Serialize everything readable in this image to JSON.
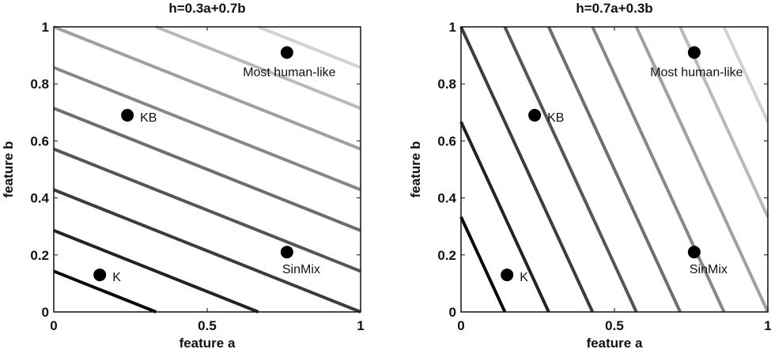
{
  "chart_data": [
    {
      "type": "line",
      "title": "h=0.3a+0.7b",
      "xlabel": "feature a",
      "ylabel": "feature b",
      "xlim": [
        0,
        1
      ],
      "ylim": [
        0,
        1
      ],
      "xticks": [
        "0",
        "0.5",
        "1"
      ],
      "xtick_values": [
        0,
        0.5,
        1
      ],
      "yticks": [
        "0",
        "0.2",
        "0.4",
        "0.6",
        "0.8",
        "1"
      ],
      "ytick_values": [
        0,
        0.2,
        0.4,
        0.6,
        0.8,
        1
      ],
      "weights": {
        "a": 0.3,
        "b": 0.7
      },
      "contour_levels": [
        0.1,
        0.2,
        0.3,
        0.4,
        0.5,
        0.6,
        0.7,
        0.8,
        0.9
      ],
      "points": [
        {
          "label": "Most human-like",
          "a": 0.76,
          "b": 0.91
        },
        {
          "label": "KB",
          "a": 0.24,
          "b": 0.69
        },
        {
          "label": "SinMix",
          "a": 0.76,
          "b": 0.21
        },
        {
          "label": "K",
          "a": 0.15,
          "b": 0.13
        }
      ]
    },
    {
      "type": "line",
      "title": "h=0.7a+0.3b",
      "xlabel": "feature a",
      "ylabel": "feature b",
      "xlim": [
        0,
        1
      ],
      "ylim": [
        0,
        1
      ],
      "xticks": [
        "0",
        "0.5",
        "1"
      ],
      "xtick_values": [
        0,
        0.5,
        1
      ],
      "yticks": [
        "0",
        "0.2",
        "0.4",
        "0.6",
        "0.8",
        "1"
      ],
      "ytick_values": [
        0,
        0.2,
        0.4,
        0.6,
        0.8,
        1
      ],
      "weights": {
        "a": 0.7,
        "b": 0.3
      },
      "contour_levels": [
        0.1,
        0.2,
        0.3,
        0.4,
        0.5,
        0.6,
        0.7,
        0.8,
        0.9
      ],
      "points": [
        {
          "label": "Most human-like",
          "a": 0.76,
          "b": 0.91
        },
        {
          "label": "KB",
          "a": 0.24,
          "b": 0.69
        },
        {
          "label": "SinMix",
          "a": 0.76,
          "b": 0.21
        },
        {
          "label": "K",
          "a": 0.15,
          "b": 0.13
        }
      ]
    }
  ]
}
